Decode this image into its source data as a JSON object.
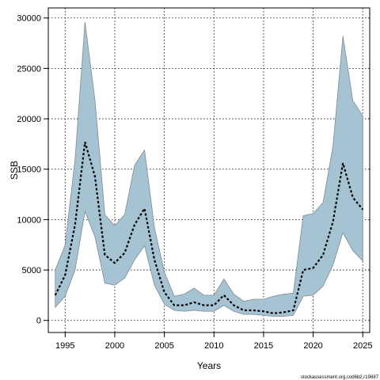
{
  "chart_data": {
    "type": "area",
    "xlabel": "Years",
    "ylabel": "SSB",
    "xlim": [
      1993.3,
      2025.7
    ],
    "ylim": [
      -1200,
      31000
    ],
    "x_ticks": [
      1995,
      2000,
      2005,
      2010,
      2015,
      2020,
      2025
    ],
    "y_ticks": [
      0,
      5000,
      10000,
      15000,
      20000,
      25000,
      30000
    ],
    "grid": true,
    "x": [
      1994,
      1995,
      1996,
      1997,
      1998,
      1999,
      2000,
      2001,
      2002,
      2003,
      2004,
      2005,
      2006,
      2007,
      2008,
      2009,
      2010,
      2011,
      2012,
      2013,
      2014,
      2015,
      2016,
      2017,
      2018,
      2019,
      2020,
      2021,
      2022,
      2023,
      2024,
      2025
    ],
    "series": [
      {
        "values": [
          2500,
          4500,
          9500,
          17700,
          14300,
          6500,
          5700,
          6700,
          9500,
          11100,
          6000,
          2800,
          1500,
          1500,
          1800,
          1500,
          1500,
          2500,
          1500,
          1000,
          1000,
          900,
          700,
          800,
          1000,
          5000,
          5200,
          6500,
          9800,
          15600,
          12200,
          11000
        ],
        "lower": [
          1300,
          2400,
          5000,
          10800,
          8300,
          3700,
          3500,
          4200,
          6000,
          7400,
          3500,
          1600,
          1000,
          900,
          1000,
          900,
          900,
          1500,
          900,
          600,
          600,
          500,
          400,
          400,
          500,
          2400,
          2500,
          3400,
          5500,
          8700,
          6900,
          5900
        ],
        "upper": [
          5000,
          7500,
          16000,
          29600,
          21900,
          10500,
          9400,
          10500,
          15400,
          16900,
          9200,
          4800,
          2400,
          2600,
          3200,
          2500,
          2500,
          4100,
          2600,
          1900,
          2100,
          2100,
          2400,
          2600,
          2700,
          10400,
          10600,
          11700,
          17300,
          28200,
          21800,
          20300
        ]
      }
    ],
    "band_color": "#a6c3d4",
    "band_edge_color": "#808a90",
    "line_color": "#000000",
    "grid_color": "#000000"
  },
  "credit": "stockassessment.org,cod6b2,r19687"
}
